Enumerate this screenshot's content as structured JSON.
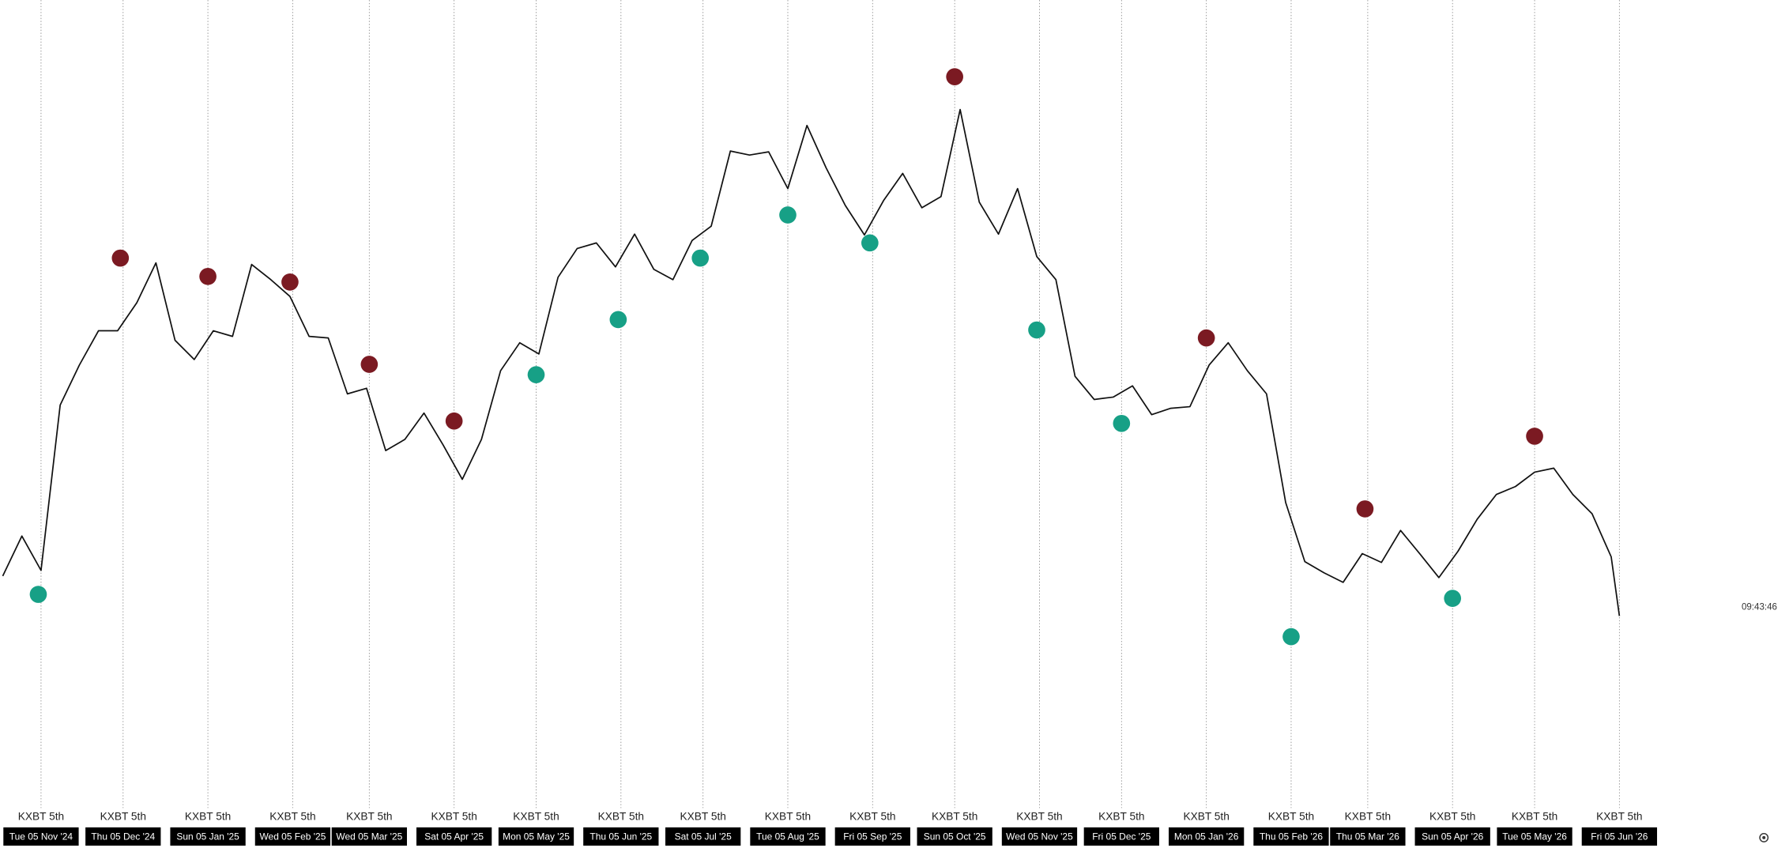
{
  "chart_data": {
    "type": "line",
    "color": "#111111",
    "x": [
      "2024-10-22",
      "2024-10-29",
      "2024-11-05",
      "2024-11-12",
      "2024-11-19",
      "2024-11-26",
      "2024-12-03",
      "2024-12-10",
      "2024-12-17",
      "2024-12-24",
      "2024-12-31",
      "2025-01-07",
      "2025-01-14",
      "2025-01-21",
      "2025-01-28",
      "2025-02-04",
      "2025-02-11",
      "2025-02-18",
      "2025-02-25",
      "2025-03-04",
      "2025-03-11",
      "2025-03-18",
      "2025-03-25",
      "2025-04-01",
      "2025-04-08",
      "2025-04-15",
      "2025-04-22",
      "2025-04-29",
      "2025-05-06",
      "2025-05-13",
      "2025-05-20",
      "2025-05-27",
      "2025-06-03",
      "2025-06-10",
      "2025-06-17",
      "2025-06-24",
      "2025-07-01",
      "2025-07-08",
      "2025-07-15",
      "2025-07-22",
      "2025-07-29",
      "2025-08-05",
      "2025-08-12",
      "2025-08-19",
      "2025-08-26",
      "2025-09-02",
      "2025-09-09",
      "2025-09-16",
      "2025-09-23",
      "2025-09-30",
      "2025-10-07",
      "2025-10-14",
      "2025-10-21",
      "2025-10-28",
      "2025-11-04",
      "2025-11-11",
      "2025-11-18",
      "2025-11-25",
      "2025-12-02",
      "2025-12-09",
      "2025-12-16",
      "2025-12-23",
      "2025-12-30",
      "2026-01-06",
      "2026-01-13",
      "2026-01-20",
      "2026-01-27",
      "2026-02-03",
      "2026-02-10",
      "2026-02-17",
      "2026-02-24",
      "2026-03-03",
      "2026-03-10",
      "2026-03-17",
      "2026-03-24",
      "2026-03-31",
      "2026-04-07",
      "2026-04-14",
      "2026-04-21",
      "2026-04-28",
      "2026-05-05",
      "2026-05-12",
      "2026-05-19",
      "2026-05-26",
      "2026-06-02",
      "2026-06-05"
    ],
    "values": [
      27.9,
      32.9,
      28.6,
      49.3,
      54.3,
      58.6,
      58.6,
      62.1,
      67.1,
      57.4,
      55.0,
      58.6,
      57.9,
      66.9,
      65.0,
      62.9,
      57.9,
      57.7,
      50.7,
      51.4,
      43.6,
      45.0,
      48.3,
      44.3,
      40.0,
      45.0,
      53.6,
      57.1,
      55.7,
      65.3,
      68.9,
      69.6,
      66.6,
      70.7,
      66.3,
      65.0,
      69.9,
      71.7,
      81.1,
      80.6,
      81.0,
      76.4,
      84.3,
      79.0,
      74.3,
      70.6,
      74.9,
      78.3,
      74.0,
      75.4,
      86.3,
      74.7,
      70.7,
      76.4,
      67.9,
      65.0,
      52.9,
      50.0,
      50.3,
      51.7,
      48.1,
      48.9,
      49.1,
      54.3,
      57.1,
      53.6,
      50.7,
      37.1,
      29.7,
      28.3,
      27.1,
      30.7,
      29.6,
      33.6,
      30.7,
      27.7,
      31.0,
      35.0,
      38.1,
      39.1,
      40.9,
      41.4,
      38.1,
      35.7,
      30.3,
      22.9
    ],
    "highs": {
      "color": "#7b1a22",
      "x": [
        "2024-12-04",
        "2025-01-05",
        "2025-02-04",
        "2025-03-05",
        "2025-04-05",
        "2025-10-05",
        "2026-01-05",
        "2026-03-04",
        "2026-05-05"
      ],
      "values": [
        67.7,
        65.4,
        64.7,
        54.4,
        47.3,
        90.4,
        57.7,
        36.3,
        45.4
      ]
    },
    "lows": {
      "color": "#17a086",
      "x": [
        "2024-11-04",
        "2025-05-05",
        "2025-06-04",
        "2025-07-04",
        "2025-08-05",
        "2025-09-04",
        "2025-11-04",
        "2025-12-05",
        "2026-02-05",
        "2026-04-05"
      ],
      "values": [
        25.6,
        53.1,
        60.0,
        67.7,
        73.1,
        69.6,
        58.7,
        47.0,
        20.3,
        25.1
      ]
    },
    "xlim": [
      "2024-10-21",
      "2026-08-06"
    ],
    "ylim": [
      0,
      100
    ],
    "xticks": [
      {
        "value": "2024-11-05",
        "label": "Tue 05 Nov '24"
      },
      {
        "value": "2024-12-05",
        "label": "Thu 05 Dec '24"
      },
      {
        "value": "2025-01-05",
        "label": "Sun 05 Jan '25"
      },
      {
        "value": "2025-02-05",
        "label": "Wed 05 Feb '25"
      },
      {
        "value": "2025-03-05",
        "label": "Wed 05 Mar '25"
      },
      {
        "value": "2025-04-05",
        "label": "Sat 05 Apr '25"
      },
      {
        "value": "2025-05-05",
        "label": "Mon 05 May '25"
      },
      {
        "value": "2025-06-05",
        "label": "Thu 05 Jun '25"
      },
      {
        "value": "2025-07-05",
        "label": "Sat 05 Jul '25"
      },
      {
        "value": "2025-08-05",
        "label": "Tue 05 Aug '25"
      },
      {
        "value": "2025-09-05",
        "label": "Fri 05 Sep '25"
      },
      {
        "value": "2025-10-05",
        "label": "Sun 05 Oct '25"
      },
      {
        "value": "2025-11-05",
        "label": "Wed 05 Nov '25"
      },
      {
        "value": "2025-12-05",
        "label": "Fri 05 Dec '25"
      },
      {
        "value": "2026-01-05",
        "label": "Mon 05 Jan '26"
      },
      {
        "value": "2026-02-05",
        "label": "Thu 05 Feb '26"
      },
      {
        "value": "2026-03-05",
        "label": "Thu 05 Mar '26"
      },
      {
        "value": "2026-04-05",
        "label": "Sun 05 Apr '26"
      },
      {
        "value": "2026-05-05",
        "label": "Tue 05 May '26"
      },
      {
        "value": "2026-06-05",
        "label": "Fri 05 Jun '26"
      }
    ],
    "annotations": [
      {
        "x": "2024-11-05",
        "text": "KXBT 5th"
      },
      {
        "x": "2024-12-05",
        "text": "KXBT 5th"
      },
      {
        "x": "2025-01-05",
        "text": "KXBT 5th"
      },
      {
        "x": "2025-02-05",
        "text": "KXBT 5th"
      },
      {
        "x": "2025-03-05",
        "text": "KXBT 5th"
      },
      {
        "x": "2025-04-05",
        "text": "KXBT 5th"
      },
      {
        "x": "2025-05-05",
        "text": "KXBT 5th"
      },
      {
        "x": "2025-06-05",
        "text": "KXBT 5th"
      },
      {
        "x": "2025-07-05",
        "text": "KXBT 5th"
      },
      {
        "x": "2025-08-05",
        "text": "KXBT 5th"
      },
      {
        "x": "2025-09-05",
        "text": "KXBT 5th"
      },
      {
        "x": "2025-10-05",
        "text": "KXBT 5th"
      },
      {
        "x": "2025-11-05",
        "text": "KXBT 5th"
      },
      {
        "x": "2025-12-05",
        "text": "KXBT 5th"
      },
      {
        "x": "2026-01-05",
        "text": "KXBT 5th"
      },
      {
        "x": "2026-02-05",
        "text": "KXBT 5th"
      },
      {
        "x": "2026-03-05",
        "text": "KXBT 5th"
      },
      {
        "x": "2026-04-05",
        "text": "KXBT 5th"
      },
      {
        "x": "2026-05-05",
        "text": "KXBT 5th"
      },
      {
        "x": "2026-06-05",
        "text": "KXBT 5th"
      }
    ],
    "time_label": "09:43:46"
  }
}
